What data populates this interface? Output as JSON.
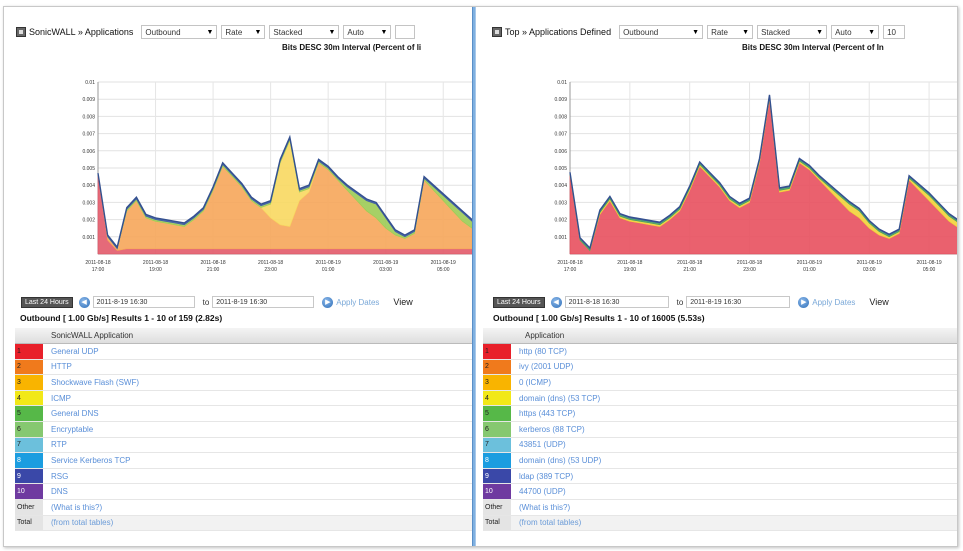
{
  "left": {
    "title": "SonicWALL » Applications",
    "dropdowns": [
      "Outbound",
      "Rate",
      "Stacked",
      "Auto",
      ""
    ],
    "subtitle": "Bits DESC 30m Interval (Percent of li",
    "date_button": "Last 24 Hours",
    "date_from": "2011-8-19 16:30",
    "to_label": "to",
    "date_to": "2011-8-19 16:30",
    "apply_label": "Apply Dates",
    "view_label": "View",
    "results": "Outbound [ 1.00 Gb/s] Results 1 - 10 of 159 (2.82s)",
    "column_header": "SonicWALL Application",
    "rows": [
      {
        "num": "1",
        "label": "General UDP"
      },
      {
        "num": "2",
        "label": "HTTP"
      },
      {
        "num": "3",
        "label": "Shockwave Flash (SWF)"
      },
      {
        "num": "4",
        "label": "ICMP"
      },
      {
        "num": "5",
        "label": "General DNS"
      },
      {
        "num": "6",
        "label": "Encryptable"
      },
      {
        "num": "7",
        "label": "RTP"
      },
      {
        "num": "8",
        "label": "Service Kerberos TCP"
      },
      {
        "num": "9",
        "label": "RSG"
      },
      {
        "num": "10",
        "label": "DNS"
      }
    ],
    "other": {
      "num": "Other",
      "label": "(What is this?)"
    },
    "total": {
      "num": "Total",
      "label": "(from total tables)"
    }
  },
  "right": {
    "title": "Top » Applications Defined",
    "dropdowns": [
      "Outbound",
      "Rate",
      "Stacked",
      "Auto",
      "10"
    ],
    "subtitle": "Bits DESC 30m Interval (Percent of In",
    "date_button": "Last 24 Hours",
    "date_from": "2011-8-18 16:30",
    "to_label": "to",
    "date_to": "2011-8-19 16:30",
    "apply_label": "Apply Dates",
    "view_label": "View",
    "results": "Outbound [ 1.00 Gb/s] Results 1 - 10 of 16005 (5.53s)",
    "column_header": "Application",
    "rows": [
      {
        "num": "1",
        "label": "http (80 TCP)"
      },
      {
        "num": "2",
        "label": "ivy (2001 UDP)"
      },
      {
        "num": "3",
        "label": "0 (ICMP)"
      },
      {
        "num": "4",
        "label": "domain (dns) (53 TCP)"
      },
      {
        "num": "5",
        "label": "https (443 TCP)"
      },
      {
        "num": "6",
        "label": "kerberos (88 TCP)"
      },
      {
        "num": "7",
        "label": "43851 (UDP)"
      },
      {
        "num": "8",
        "label": "domain (dns) (53 UDP)"
      },
      {
        "num": "9",
        "label": "ldap (389 TCP)"
      },
      {
        "num": "10",
        "label": "44700 (UDP)"
      }
    ],
    "other": {
      "num": "Other",
      "label": "(What is this?)"
    },
    "total": {
      "num": "Total",
      "label": "(from total tables)"
    }
  },
  "row_colors": [
    "#e8202a",
    "#f07a1c",
    "#f9b400",
    "#f2e818",
    "#56b848",
    "#86c870",
    "#6cc0dc",
    "#1b9de0",
    "#3a48a8",
    "#6f3aa0"
  ],
  "chart_data": [
    {
      "type": "area",
      "stacked": true,
      "y_ticks": [
        "0.001",
        "0.002",
        "0.003",
        "0.004",
        "0.005",
        "0.006",
        "0.007",
        "0.008",
        "0.009",
        "0.01"
      ],
      "x_ticks": [
        "2011-08-18 17:00",
        "2011-08-18 19:00",
        "2011-08-18 21:00",
        "2011-08-18 23:00",
        "2011-08-19 01:00",
        "2011-08-19 03:00",
        "2011-08-19 05:00"
      ],
      "ylim": [
        0,
        0.01
      ],
      "grid": true,
      "series": [
        {
          "color": "#e25a6a",
          "values": [
            0.0046,
            0.0008,
            0.0002,
            0.0003,
            0.0003,
            0.0003,
            0.0003,
            0.0003,
            0.0003,
            0.0003,
            0.0003,
            0.0003,
            0.0003,
            0.0003,
            0.0003,
            0.0003,
            0.0003,
            0.0003,
            0.0003,
            0.0003,
            0.0003,
            0.0003,
            0.0003,
            0.0003,
            0.0003,
            0.0003,
            0.0003,
            0.0003,
            0.0003,
            0.0003,
            0.0003,
            0.0003,
            0.0003,
            0.0003,
            0.0003,
            0.0003,
            0.0003,
            0.0003,
            0.0003,
            0.0003
          ]
        },
        {
          "color": "#f6a65a",
          "values": [
            0.0,
            0.0002,
            0.0001,
            0.0022,
            0.0028,
            0.0018,
            0.0016,
            0.0015,
            0.0014,
            0.0013,
            0.0017,
            0.0022,
            0.0034,
            0.0048,
            0.0042,
            0.0036,
            0.0028,
            0.0024,
            0.0018,
            0.0014,
            0.0013,
            0.0028,
            0.0033,
            0.005,
            0.0046,
            0.004,
            0.0034,
            0.0028,
            0.0022,
            0.0018,
            0.0012,
            0.0008,
            0.0006,
            0.0009,
            0.004,
            0.0034,
            0.0028,
            0.0022,
            0.0016,
            0.0012
          ]
        },
        {
          "color": "#f8d860",
          "values": [
            0.0,
            0.0,
            0.0,
            0.0,
            0.0,
            0.0,
            0.0,
            0.0,
            0.0,
            0.0,
            0.0,
            0.0,
            0.0,
            0.0,
            0.0,
            0.0,
            0.0,
            0.0,
            0.0008,
            0.0036,
            0.005,
            0.0005,
            0.0002,
            0.0,
            0.0,
            0.0,
            0.0,
            0.0,
            0.0,
            0.0,
            0.0,
            0.0,
            0.0,
            0.0,
            0.0,
            0.0,
            0.0,
            0.0,
            0.0,
            0.0
          ]
        },
        {
          "color": "#9ccb55",
          "values": [
            0.0,
            0.0,
            0.0,
            0.0001,
            0.0001,
            0.0001,
            0.0001,
            0.0001,
            0.0001,
            0.0001,
            0.0001,
            0.0001,
            0.0001,
            0.0001,
            0.0001,
            0.0001,
            0.0001,
            0.0001,
            0.0001,
            0.0001,
            0.0001,
            0.0001,
            0.0001,
            0.0001,
            0.0001,
            0.0001,
            0.0002,
            0.0004,
            0.0006,
            0.0008,
            0.0006,
            0.0002,
            0.0001,
            0.0001,
            0.0001,
            0.0002,
            0.0003,
            0.0004,
            0.0005,
            0.0004
          ]
        },
        {
          "color": "#3e5ca8",
          "values": [
            0.0001,
            0.0001,
            0.0001,
            0.0001,
            0.0001,
            0.0001,
            0.0001,
            0.0001,
            0.0001,
            0.0001,
            0.0001,
            0.0001,
            0.0001,
            0.0001,
            0.0001,
            0.0001,
            0.0001,
            0.0001,
            0.0001,
            0.0001,
            0.0001,
            0.0001,
            0.0001,
            0.0001,
            0.0001,
            0.0001,
            0.0001,
            0.0001,
            0.0001,
            0.0001,
            0.0001,
            0.0001,
            0.0001,
            0.0001,
            0.0001,
            0.0001,
            0.0001,
            0.0001,
            0.0001,
            0.0001
          ]
        }
      ]
    },
    {
      "type": "area",
      "stacked": true,
      "y_ticks": [
        "0.001",
        "0.002",
        "0.003",
        "0.004",
        "0.005",
        "0.006",
        "0.007",
        "0.008",
        "0.009",
        "0.01"
      ],
      "x_ticks": [
        "2011-08-18 17:00",
        "2011-08-18 19:00",
        "2011-08-18 21:00",
        "2011-08-18 23:00",
        "2011-08-19 01:00",
        "2011-08-19 03:00",
        "2011-08-19 05:00"
      ],
      "ylim": [
        0,
        0.01
      ],
      "grid": true,
      "series": [
        {
          "color": "#e8505e",
          "values": [
            0.0046,
            0.0008,
            0.0002,
            0.0023,
            0.0031,
            0.0021,
            0.0019,
            0.0018,
            0.0017,
            0.0016,
            0.002,
            0.0025,
            0.0037,
            0.0051,
            0.0045,
            0.0039,
            0.0031,
            0.0027,
            0.003,
            0.0053,
            0.009,
            0.0036,
            0.0037,
            0.0053,
            0.0049,
            0.0043,
            0.0037,
            0.0031,
            0.0025,
            0.0021,
            0.0015,
            0.0011,
            0.0009,
            0.0012,
            0.0043,
            0.0037,
            0.0031,
            0.0025,
            0.0019,
            0.0015
          ]
        },
        {
          "color": "#f2d23a",
          "values": [
            0.0,
            0.0,
            0.0,
            0.0001,
            0.0001,
            0.0001,
            0.0001,
            0.0001,
            0.0001,
            0.0001,
            0.0001,
            0.0001,
            0.0001,
            0.0001,
            0.0001,
            0.0001,
            0.0001,
            0.0001,
            0.0001,
            0.0001,
            0.0001,
            0.0001,
            0.0001,
            0.0001,
            0.0001,
            0.0001,
            0.0002,
            0.0003,
            0.0004,
            0.0004,
            0.0003,
            0.0002,
            0.0001,
            0.0001,
            0.0001,
            0.0002,
            0.0003,
            0.0003,
            0.0003,
            0.0003
          ]
        },
        {
          "color": "#46a060",
          "values": [
            0.0001,
            0.0001,
            0.0001,
            0.0001,
            0.0001,
            0.0001,
            0.0001,
            0.0001,
            0.0001,
            0.0001,
            0.0001,
            0.0001,
            0.0001,
            0.0001,
            0.0001,
            0.0001,
            0.0001,
            0.0001,
            0.0001,
            0.0001,
            0.0001,
            0.0001,
            0.0001,
            0.0001,
            0.0001,
            0.0001,
            0.0001,
            0.0001,
            0.0001,
            0.0001,
            0.0001,
            0.0001,
            0.0001,
            0.0001,
            0.0001,
            0.0001,
            0.0001,
            0.0001,
            0.0001,
            0.0001
          ]
        },
        {
          "color": "#3e5ca8",
          "values": [
            5e-05,
            5e-05,
            5e-05,
            5e-05,
            5e-05,
            5e-05,
            5e-05,
            5e-05,
            5e-05,
            5e-05,
            5e-05,
            5e-05,
            5e-05,
            5e-05,
            5e-05,
            5e-05,
            5e-05,
            5e-05,
            5e-05,
            5e-05,
            5e-05,
            5e-05,
            5e-05,
            5e-05,
            5e-05,
            5e-05,
            5e-05,
            5e-05,
            5e-05,
            5e-05,
            5e-05,
            5e-05,
            5e-05,
            5e-05,
            5e-05,
            5e-05,
            5e-05,
            5e-05,
            5e-05,
            5e-05
          ]
        }
      ]
    }
  ]
}
